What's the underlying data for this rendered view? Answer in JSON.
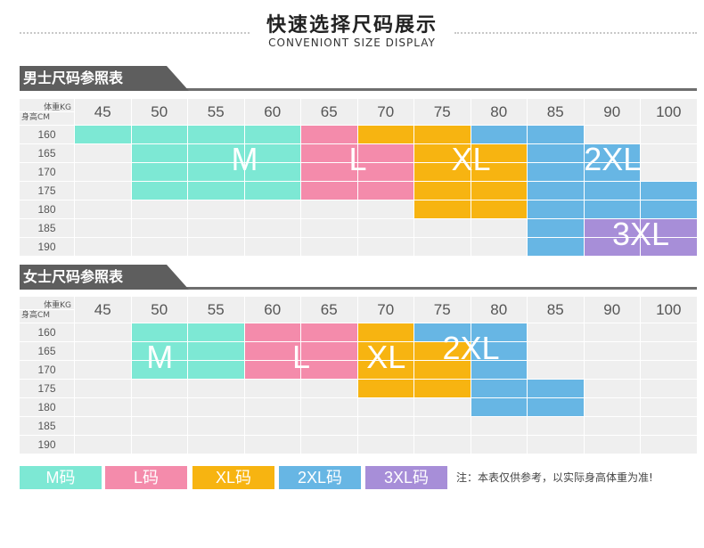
{
  "header": {
    "title": "快速选择尺码展示",
    "subtitle": "CONVENIONT SIZE DISPLAY"
  },
  "colors": {
    "M": "#7de8d4",
    "L": "#f48bab",
    "XL": "#f7b411",
    "2XL": "#67b6e4",
    "3XL": "#a78ed8",
    "empty": "#efefef"
  },
  "weights": [
    "45",
    "50",
    "55",
    "60",
    "65",
    "70",
    "75",
    "80",
    "85",
    "90",
    "100"
  ],
  "heights": [
    "160",
    "165",
    "170",
    "175",
    "180",
    "185",
    "190"
  ],
  "corner": {
    "weight_label": "体重KG",
    "height_label": "身高CM"
  },
  "men": {
    "title": "男士尺码参照表",
    "grid": [
      [
        "M",
        "M",
        "M",
        "M",
        "L",
        "XL",
        "XL",
        "2XL",
        "2XL",
        "",
        ""
      ],
      [
        "",
        "M",
        "M",
        "M",
        "L",
        "L",
        "XL",
        "XL",
        "2XL",
        "2XL",
        ""
      ],
      [
        "",
        "M",
        "M",
        "M",
        "L",
        "L",
        "XL",
        "XL",
        "2XL",
        "2XL",
        ""
      ],
      [
        "",
        "M",
        "M",
        "M",
        "L",
        "L",
        "XL",
        "XL",
        "2XL",
        "2XL",
        "2XL"
      ],
      [
        "",
        "",
        "",
        "",
        "",
        "",
        "XL",
        "XL",
        "2XL",
        "2XL",
        "2XL"
      ],
      [
        "",
        "",
        "",
        "",
        "",
        "",
        "",
        "",
        "2XL",
        "3XL",
        "3XL"
      ],
      [
        "",
        "",
        "",
        "",
        "",
        "",
        "",
        "",
        "2XL",
        "3XL",
        "3XL"
      ]
    ],
    "labels": {
      "M": "M",
      "L": "L",
      "XL": "XL",
      "2XL": "2XL",
      "3XL": "3XL"
    }
  },
  "women": {
    "title": "女士尺码参照表",
    "grid": [
      [
        "",
        "M",
        "M",
        "L",
        "L",
        "XL",
        "2XL",
        "2XL",
        "",
        "",
        ""
      ],
      [
        "",
        "M",
        "M",
        "L",
        "L",
        "XL",
        "XL",
        "2XL",
        "",
        "",
        ""
      ],
      [
        "",
        "M",
        "M",
        "L",
        "L",
        "XL",
        "XL",
        "2XL",
        "",
        "",
        ""
      ],
      [
        "",
        "",
        "",
        "",
        "",
        "XL",
        "XL",
        "2XL",
        "2XL",
        "",
        ""
      ],
      [
        "",
        "",
        "",
        "",
        "",
        "",
        "",
        "2XL",
        "2XL",
        "",
        ""
      ],
      [
        "",
        "",
        "",
        "",
        "",
        "",
        "",
        "",
        "",
        "",
        ""
      ],
      [
        "",
        "",
        "",
        "",
        "",
        "",
        "",
        "",
        "",
        "",
        ""
      ]
    ],
    "labels": {
      "M": "M",
      "L": "L",
      "XL": "XL",
      "2XL": "2XL"
    }
  },
  "legend": {
    "items": [
      {
        "label": "M码",
        "key": "M"
      },
      {
        "label": "L码",
        "key": "L"
      },
      {
        "label": "XL码",
        "key": "XL"
      },
      {
        "label": "2XL码",
        "key": "2XL"
      },
      {
        "label": "3XL码",
        "key": "3XL"
      }
    ],
    "note": "注：本表仅供参考，以实际身高体重为准!"
  }
}
